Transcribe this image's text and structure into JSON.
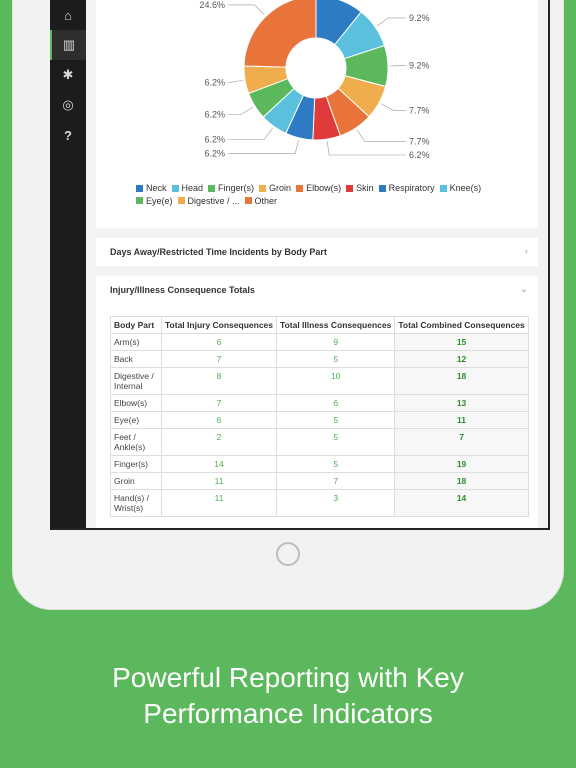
{
  "sidebar": {
    "items": [
      {
        "icon": "document-icon",
        "glyph": "▤"
      },
      {
        "icon": "folder-icon",
        "glyph": "⌂"
      },
      {
        "icon": "bar-chart-icon",
        "glyph": "▥",
        "active": true
      },
      {
        "icon": "gear-icon",
        "glyph": "✱"
      },
      {
        "icon": "toggle-icon",
        "glyph": "◎"
      },
      {
        "icon": "help-icon",
        "glyph": "?"
      }
    ]
  },
  "chart_data": {
    "type": "pie",
    "slices": [
      {
        "label": "Neck",
        "value": 10.8,
        "pct_label": "10.8%",
        "color": "#2e7bc4"
      },
      {
        "label": "Head",
        "value": 9.2,
        "pct_label": "9.2%",
        "color": "#5bc0de"
      },
      {
        "label": "Finger(s)",
        "value": 9.2,
        "pct_label": "9.2%",
        "color": "#5cb85c"
      },
      {
        "label": "Groin",
        "value": 7.7,
        "pct_label": "7.7%",
        "color": "#f0ad4e"
      },
      {
        "label": "Elbow(s)",
        "value": 7.7,
        "pct_label": "7.7%",
        "color": "#e8743b"
      },
      {
        "label": "Skin",
        "value": 6.2,
        "pct_label": "6.2%",
        "color": "#e03b3b"
      },
      {
        "label": "Respiratory",
        "value": 6.2,
        "pct_label": "6.2%",
        "color": "#2e7bc4"
      },
      {
        "label": "Knee(s)",
        "value": 6.2,
        "pct_label": "6.2%",
        "color": "#5bc0de"
      },
      {
        "label": "Eye(e)",
        "value": 6.2,
        "pct_label": "6.2%",
        "color": "#5cb85c"
      },
      {
        "label": "Digestive / ...",
        "value": 6.2,
        "pct_label": "6.2%",
        "color": "#f0ad4e"
      },
      {
        "label": "Other",
        "value": 24.6,
        "pct_label": "24.6%",
        "color": "#e8743b"
      }
    ]
  },
  "sections": {
    "days_away": "Days Away/Restricted Time Incidents by Body Part",
    "consequence": "Injury/Illness Consequence Totals"
  },
  "table": {
    "headers": [
      "Body Part",
      "Total Injury Consequences",
      "Total Illness Consequences",
      "Total Combined Consequences"
    ],
    "rows": [
      [
        "Arm(s)",
        "6",
        "9",
        "15"
      ],
      [
        "Back",
        "7",
        "5",
        "12"
      ],
      [
        "Digestive / Internal",
        "8",
        "10",
        "18"
      ],
      [
        "Elbow(s)",
        "7",
        "6",
        "13"
      ],
      [
        "Eye(e)",
        "6",
        "5",
        "11"
      ],
      [
        "Feet / Ankle(s)",
        "2",
        "5",
        "7"
      ],
      [
        "Finger(s)",
        "14",
        "5",
        "19"
      ],
      [
        "Groin",
        "11",
        "7",
        "18"
      ],
      [
        "Hand(s) / Wrist(s)",
        "11",
        "3",
        "14"
      ]
    ]
  },
  "caption": {
    "line1": "Powerful Reporting with Key",
    "line2": "Performance Indicators"
  }
}
